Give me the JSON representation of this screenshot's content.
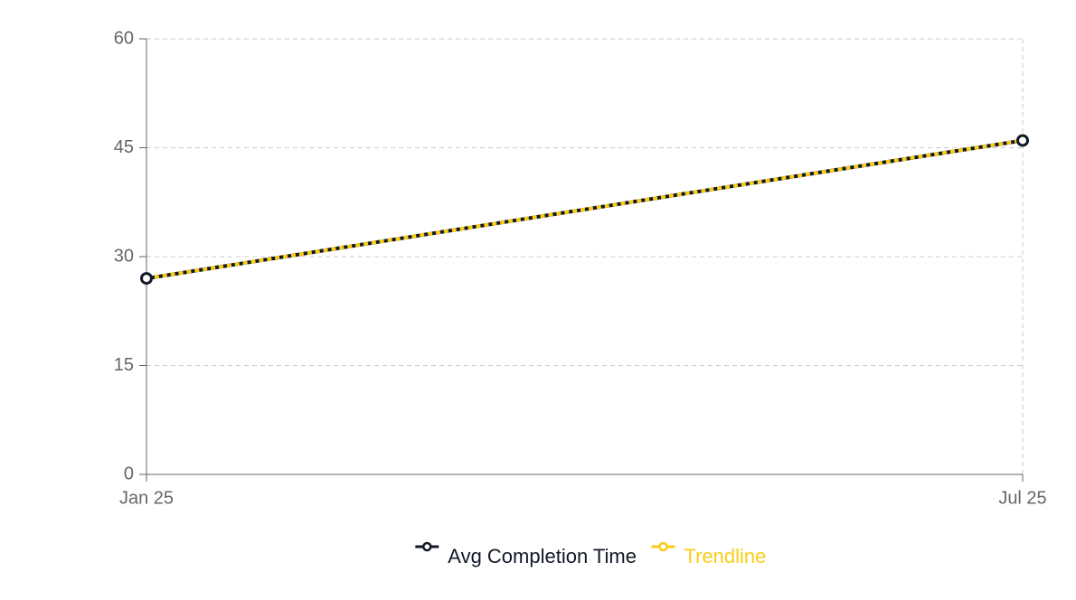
{
  "chart_data": {
    "type": "line",
    "categories": [
      "Jan 25",
      "Jul 25"
    ],
    "series": [
      {
        "name": "Avg Completion Time",
        "color": "#111827",
        "values": [
          27,
          46
        ]
      },
      {
        "name": "Trendline",
        "color": "#facc15",
        "values": [
          27,
          46
        ]
      }
    ],
    "ylim": [
      0,
      60
    ],
    "yticks": [
      0,
      15,
      30,
      45,
      60
    ],
    "grid": true
  }
}
